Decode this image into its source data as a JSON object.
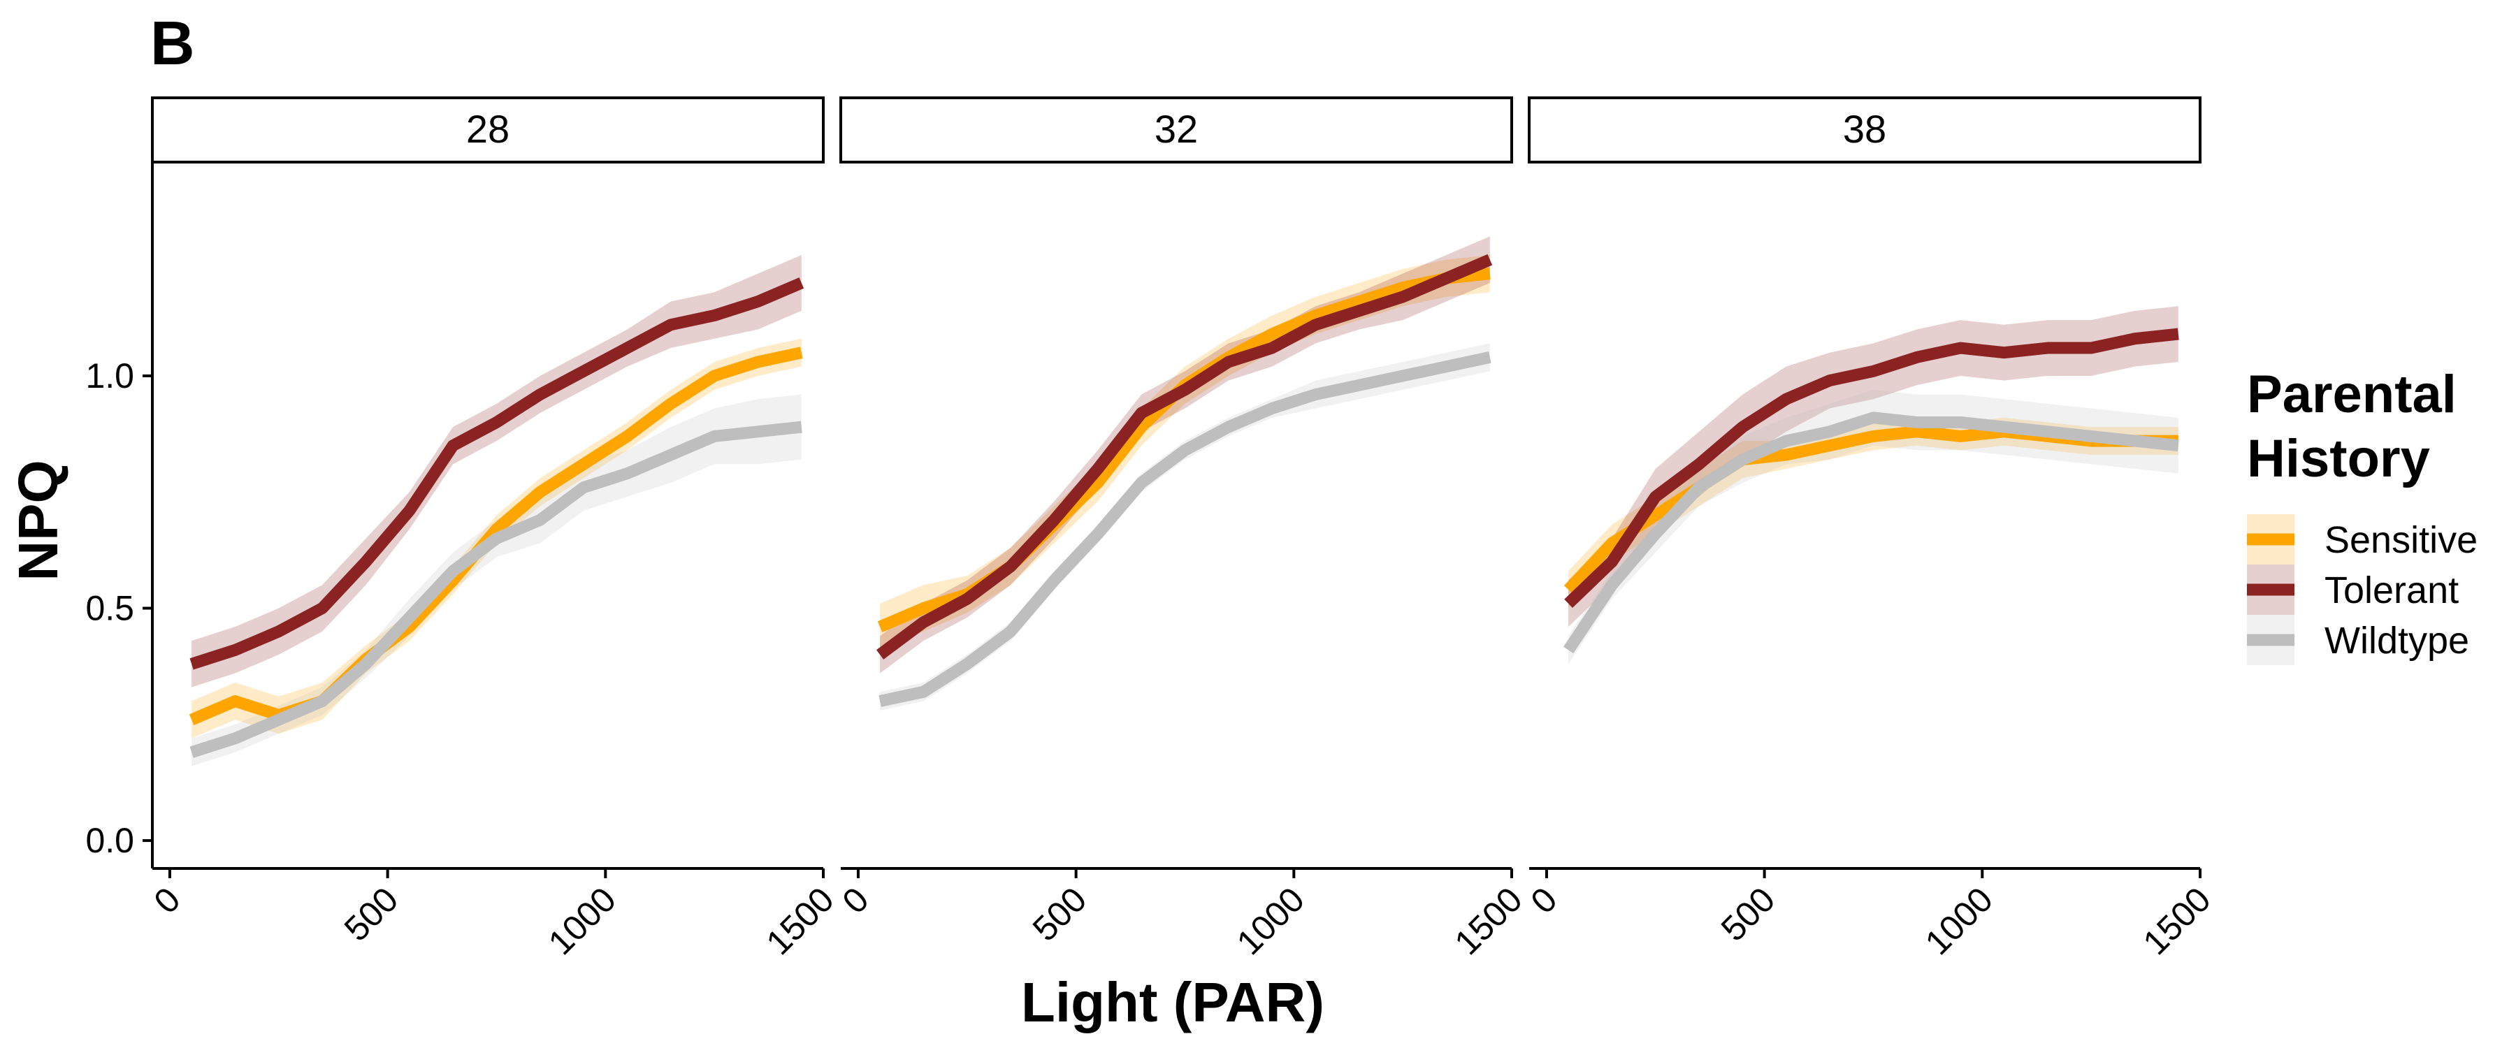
{
  "panel_label": "B",
  "colors": {
    "Sensitive": "#FFA500",
    "Tolerant": "#8B2323",
    "Wildtype": "#BEBEBE"
  },
  "legend": {
    "title_lines": [
      "Parental",
      "History"
    ],
    "entries": [
      "Sensitive",
      "Tolerant",
      "Wildtype"
    ]
  },
  "chart_data": {
    "type": "line",
    "xlabel": "Light (PAR)",
    "ylabel": "NPQ",
    "xlim": [
      -40,
      1500
    ],
    "ylim": [
      -0.06,
      1.46
    ],
    "x_ticks": [
      0,
      500,
      1000,
      1500
    ],
    "x_tick_labels": [
      "0",
      "500",
      "1000",
      "1500"
    ],
    "y_ticks": [
      0.0,
      0.5,
      1.0
    ],
    "y_tick_labels": [
      "0.0",
      "0.5",
      "1.0"
    ],
    "facets": [
      {
        "label": "28",
        "series": [
          {
            "name": "Sensitive",
            "x": [
              50,
              150,
              250,
              350,
              450,
              550,
              650,
              750,
              850,
              950,
              1050,
              1150,
              1250,
              1350,
              1450
            ],
            "y": [
              0.26,
              0.3,
              0.27,
              0.3,
              0.39,
              0.46,
              0.56,
              0.67,
              0.75,
              0.81,
              0.87,
              0.94,
              1.0,
              1.03,
              1.05
            ],
            "ci": [
              0.04,
              0.04,
              0.04,
              0.04,
              0.03,
              0.03,
              0.03,
              0.03,
              0.03,
              0.03,
              0.03,
              0.03,
              0.03,
              0.03,
              0.03
            ]
          },
          {
            "name": "Tolerant",
            "x": [
              50,
              150,
              250,
              350,
              450,
              550,
              650,
              750,
              850,
              950,
              1050,
              1150,
              1250,
              1350,
              1450
            ],
            "y": [
              0.38,
              0.41,
              0.45,
              0.5,
              0.6,
              0.71,
              0.85,
              0.9,
              0.96,
              1.01,
              1.06,
              1.11,
              1.13,
              1.16,
              1.2
            ],
            "ci": [
              0.05,
              0.05,
              0.05,
              0.05,
              0.05,
              0.04,
              0.04,
              0.04,
              0.04,
              0.04,
              0.04,
              0.05,
              0.05,
              0.06,
              0.06
            ]
          },
          {
            "name": "Wildtype",
            "x": [
              50,
              150,
              250,
              350,
              450,
              550,
              650,
              750,
              850,
              950,
              1050,
              1150,
              1250,
              1350,
              1450
            ],
            "y": [
              0.19,
              0.22,
              0.26,
              0.3,
              0.38,
              0.48,
              0.58,
              0.65,
              0.69,
              0.76,
              0.79,
              0.83,
              0.87,
              0.88,
              0.89
            ],
            "ci": [
              0.03,
              0.03,
              0.03,
              0.03,
              0.03,
              0.04,
              0.04,
              0.04,
              0.05,
              0.05,
              0.05,
              0.06,
              0.06,
              0.07,
              0.07
            ]
          }
        ]
      },
      {
        "label": "32",
        "series": [
          {
            "name": "Sensitive",
            "x": [
              50,
              150,
              250,
              350,
              450,
              550,
              650,
              750,
              850,
              950,
              1050,
              1150,
              1250,
              1350,
              1450
            ],
            "y": [
              0.46,
              0.5,
              0.53,
              0.59,
              0.68,
              0.77,
              0.89,
              0.98,
              1.04,
              1.09,
              1.13,
              1.16,
              1.19,
              1.21,
              1.22
            ],
            "ci": [
              0.05,
              0.05,
              0.04,
              0.04,
              0.04,
              0.04,
              0.04,
              0.04,
              0.04,
              0.04,
              0.04,
              0.04,
              0.04,
              0.04,
              0.04
            ]
          },
          {
            "name": "Tolerant",
            "x": [
              50,
              150,
              250,
              350,
              450,
              550,
              650,
              750,
              850,
              950,
              1050,
              1150,
              1250,
              1350,
              1450
            ],
            "y": [
              0.4,
              0.47,
              0.52,
              0.59,
              0.69,
              0.8,
              0.92,
              0.97,
              1.03,
              1.06,
              1.11,
              1.14,
              1.17,
              1.21,
              1.25
            ],
            "ci": [
              0.04,
              0.04,
              0.04,
              0.04,
              0.04,
              0.04,
              0.04,
              0.04,
              0.04,
              0.04,
              0.04,
              0.04,
              0.05,
              0.05,
              0.05
            ]
          },
          {
            "name": "Wildtype",
            "x": [
              50,
              150,
              250,
              350,
              450,
              550,
              650,
              750,
              850,
              950,
              1050,
              1150,
              1250,
              1350,
              1450
            ],
            "y": [
              0.3,
              0.32,
              0.38,
              0.45,
              0.56,
              0.66,
              0.77,
              0.84,
              0.89,
              0.93,
              0.96,
              0.98,
              1.0,
              1.02,
              1.04
            ],
            "ci": [
              0.02,
              0.02,
              0.02,
              0.02,
              0.02,
              0.02,
              0.02,
              0.02,
              0.02,
              0.02,
              0.03,
              0.03,
              0.03,
              0.03,
              0.03
            ]
          }
        ]
      },
      {
        "label": "38",
        "series": [
          {
            "name": "Sensitive",
            "x": [
              50,
              150,
              250,
              350,
              450,
              550,
              650,
              750,
              850,
              950,
              1050,
              1150,
              1250,
              1350,
              1450
            ],
            "y": [
              0.54,
              0.64,
              0.7,
              0.76,
              0.82,
              0.83,
              0.85,
              0.87,
              0.88,
              0.87,
              0.88,
              0.87,
              0.86,
              0.86,
              0.86
            ],
            "ci": [
              0.04,
              0.04,
              0.04,
              0.04,
              0.04,
              0.03,
              0.03,
              0.03,
              0.03,
              0.03,
              0.03,
              0.03,
              0.03,
              0.03,
              0.03
            ]
          },
          {
            "name": "Tolerant",
            "x": [
              50,
              150,
              250,
              350,
              450,
              550,
              650,
              750,
              850,
              950,
              1050,
              1150,
              1250,
              1350,
              1450
            ],
            "y": [
              0.51,
              0.6,
              0.74,
              0.81,
              0.89,
              0.95,
              0.99,
              1.01,
              1.04,
              1.06,
              1.05,
              1.06,
              1.06,
              1.08,
              1.09
            ],
            "ci": [
              0.05,
              0.05,
              0.06,
              0.07,
              0.07,
              0.07,
              0.06,
              0.06,
              0.06,
              0.06,
              0.06,
              0.06,
              0.06,
              0.06,
              0.06
            ]
          },
          {
            "name": "Wildtype",
            "x": [
              50,
              150,
              250,
              350,
              450,
              550,
              650,
              750,
              850,
              950,
              1050,
              1150,
              1250,
              1350,
              1450
            ],
            "y": [
              0.41,
              0.55,
              0.66,
              0.76,
              0.82,
              0.86,
              0.88,
              0.91,
              0.9,
              0.9,
              0.89,
              0.88,
              0.87,
              0.86,
              0.85
            ],
            "ci": [
              0.03,
              0.03,
              0.04,
              0.04,
              0.05,
              0.05,
              0.06,
              0.06,
              0.06,
              0.06,
              0.06,
              0.06,
              0.06,
              0.06,
              0.06
            ]
          }
        ]
      }
    ]
  }
}
